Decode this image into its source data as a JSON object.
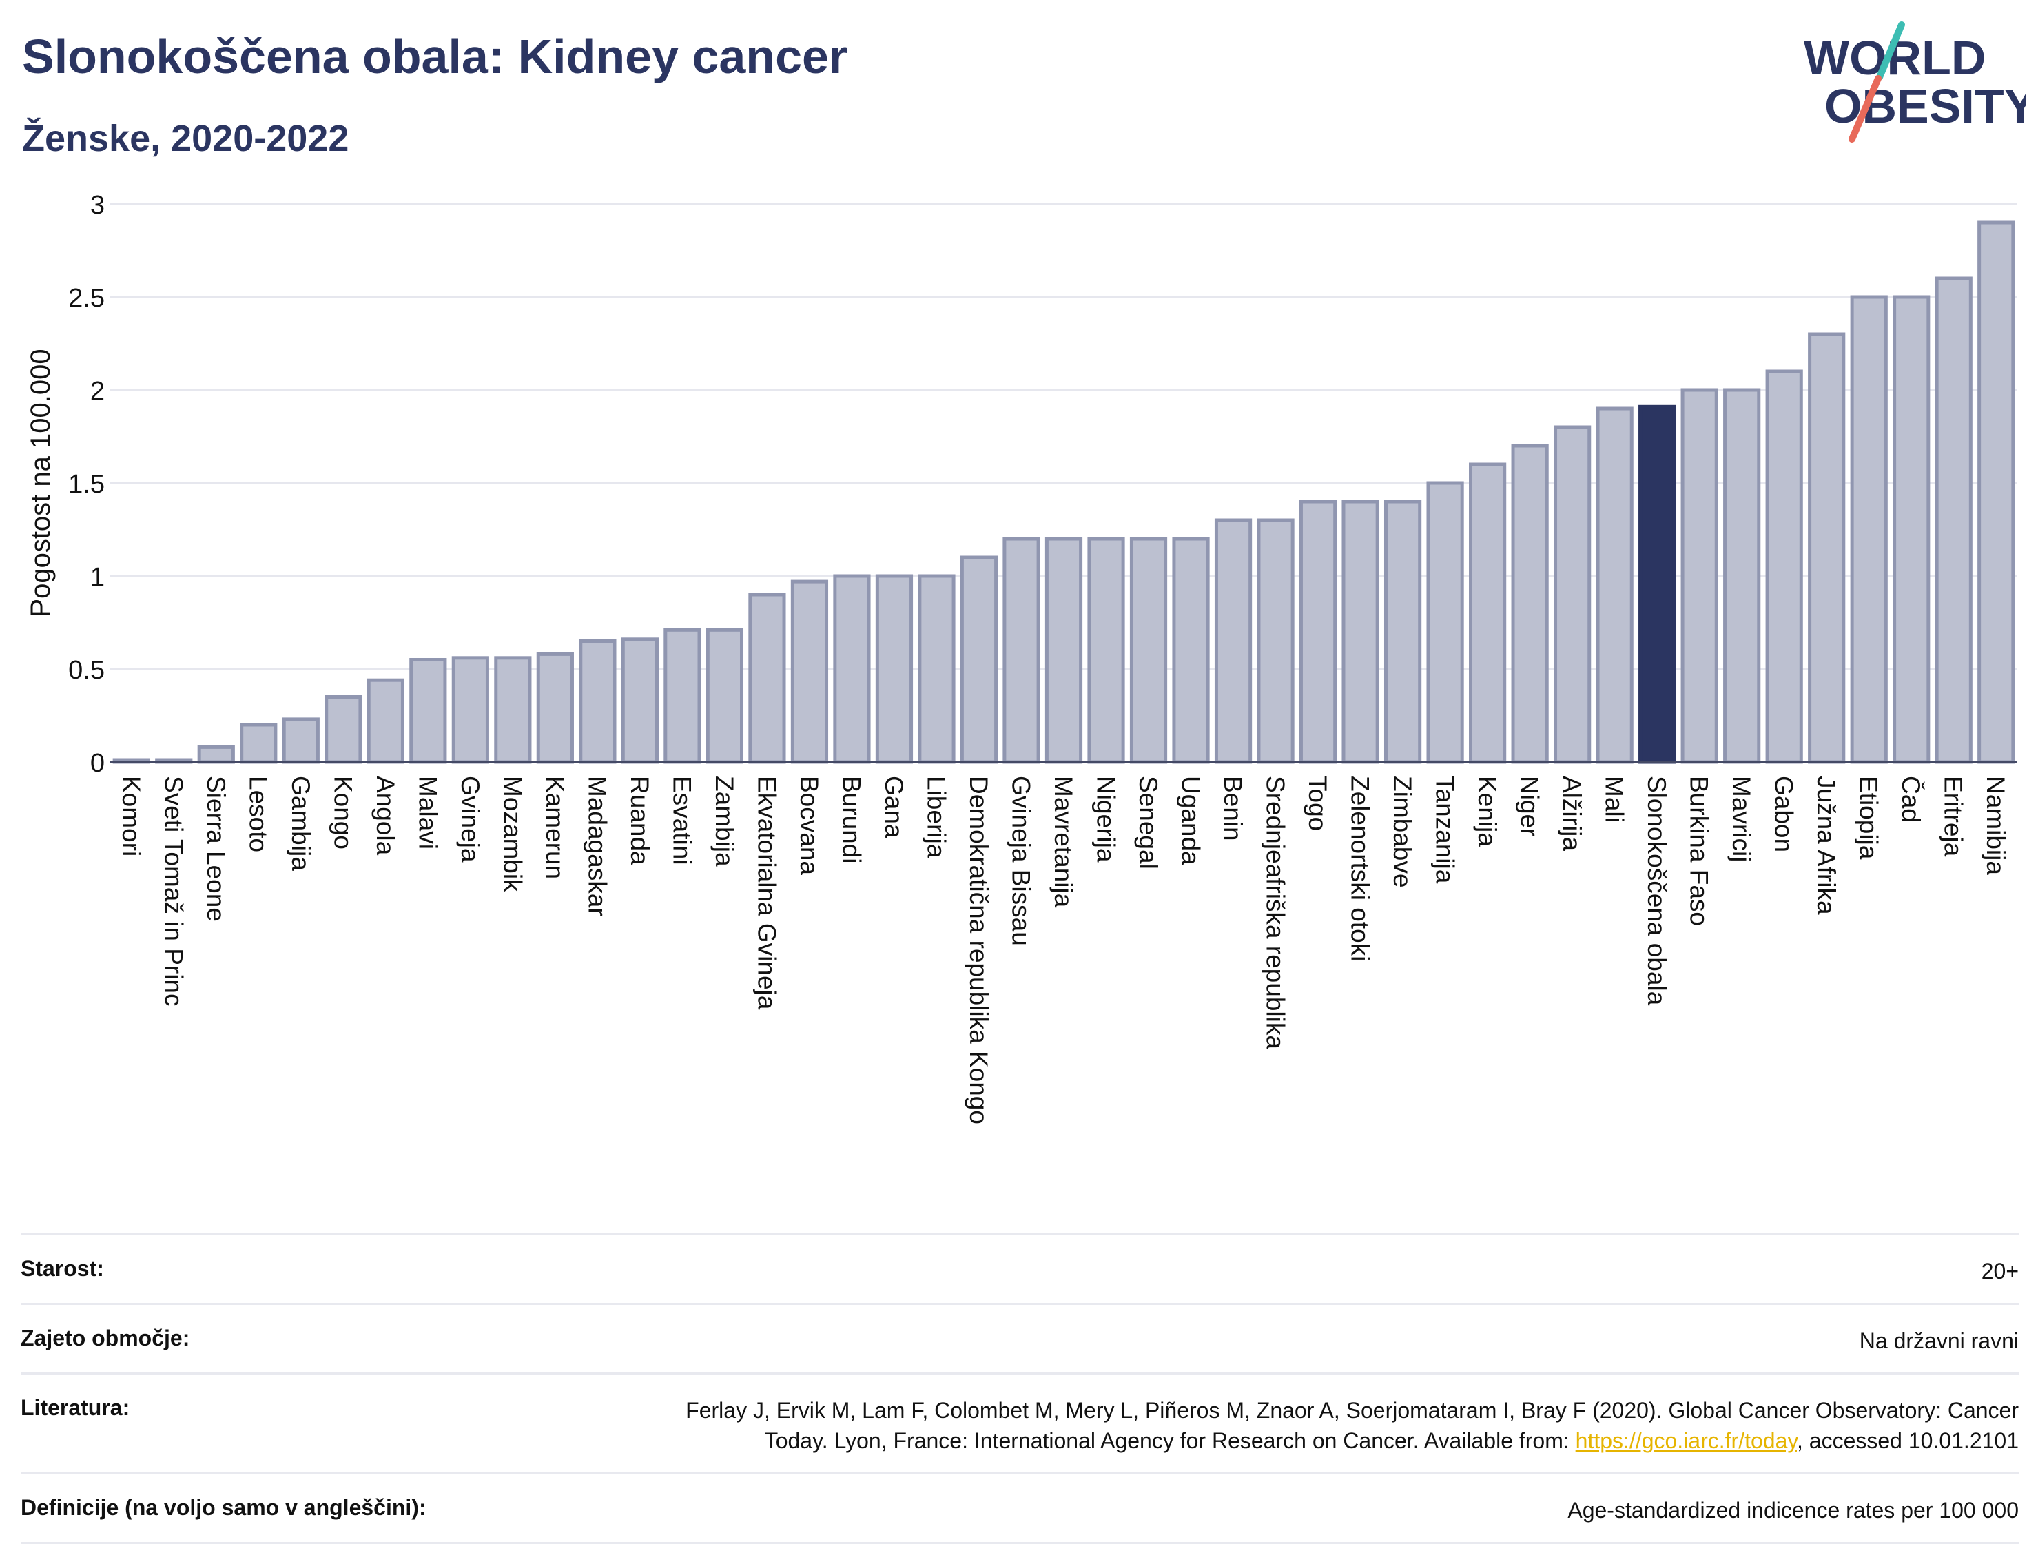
{
  "header": {
    "title": "Slonokoščena obala: Kidney cancer",
    "subtitle": "Ženske, 2020-2022"
  },
  "logo": {
    "line1": "WORLD",
    "line2": "OBESITY",
    "icon": "world-obesity-logo"
  },
  "colors": {
    "bar": "#bcc0d0",
    "bar_stroke": "#9096b0",
    "highlight": "#2b3561",
    "text": "#2b3561",
    "grid": "#e6e7ee"
  },
  "chart_data": {
    "type": "bar",
    "ylabel": "Pogostost na 100.000",
    "ylim": [
      0,
      3
    ],
    "yticks": [
      "0",
      "0.5",
      "1",
      "1.5",
      "2",
      "2.5",
      "3"
    ],
    "highlight": "Slonokoščena obala",
    "categories": [
      "Komori",
      "Sveti Tomaž in Princ",
      "Sierra Leone",
      "Lesoto",
      "Gambija",
      "Kongo",
      "Angola",
      "Malavi",
      "Gvineja",
      "Mozambik",
      "Kamerun",
      "Madagaskar",
      "Ruanda",
      "Esvatini",
      "Zambija",
      "Ekvatorialna Gvineja",
      "Bocvana",
      "Burundi",
      "Gana",
      "Liberija",
      "Demokratična republika Kongo",
      "Gvineja Bissau",
      "Mavretanija",
      "Nigerija",
      "Senegal",
      "Uganda",
      "Benin",
      "Srednjeafriška republika",
      "Togo",
      "Zelenortski otoki",
      "Zimbabve",
      "Tanzanija",
      "Kenija",
      "Niger",
      "Alžirija",
      "Mali",
      "Slonokoščena obala",
      "Burkina Faso",
      "Mavricij",
      "Gabon",
      "Južna Afrika",
      "Etiopija",
      "Čad",
      "Eritreja",
      "Namibija"
    ],
    "values": [
      0.01,
      0.01,
      0.08,
      0.2,
      0.23,
      0.35,
      0.44,
      0.55,
      0.56,
      0.56,
      0.58,
      0.65,
      0.66,
      0.71,
      0.71,
      0.9,
      0.97,
      1.0,
      1.0,
      1.0,
      1.1,
      1.2,
      1.2,
      1.2,
      1.2,
      1.2,
      1.3,
      1.3,
      1.4,
      1.4,
      1.4,
      1.5,
      1.6,
      1.7,
      1.8,
      1.9,
      1.91,
      2.0,
      2.0,
      2.1,
      2.3,
      2.5,
      2.5,
      2.6,
      2.9
    ]
  },
  "meta": {
    "age_label": "Starost:",
    "age_value": "20+",
    "area_label": "Zajeto območje:",
    "area_value": "Na državni ravni",
    "lit_label": "Literatura:",
    "lit_line1": "Ferlay J, Ervik M, Lam F, Colombet M, Mery L, Piñeros M, Znaor A, Soerjomataram I, Bray F (2020). Global Cancer Observatory: Cancer",
    "lit_line2_pre": "Today. Lyon, France: International Agency for Research on Cancer. Available from: ",
    "lit_link": "https://gco.iarc.fr/today",
    "lit_line2_post": ", accessed 10.01.2101",
    "def_label": "Definicije (na voljo samo v angleščini):",
    "def_value": "Age-standardized indicence rates per 100 000"
  }
}
